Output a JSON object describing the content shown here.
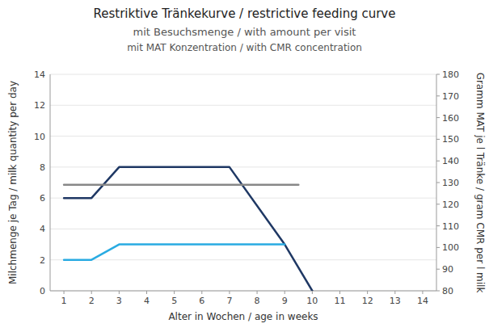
{
  "chart_data": {
    "type": "line",
    "title": "Restriktive Tränkekurve / restrictive feeding curve",
    "subtitle": [
      "mit Besuchsmenge / with amount per visit",
      "mit MAT Konzentration / with CMR concentration"
    ],
    "xlabel": "Alter in Wochen / age in weeks",
    "ylabel": "Milchmenge je Tag / milk quantity per day",
    "y2label": "Gramm MAT je l Tränke / gram CMR per l milk",
    "xlim": [
      0.5,
      14.5
    ],
    "xticks": [
      1,
      2,
      3,
      4,
      5,
      6,
      7,
      8,
      9,
      10,
      11,
      12,
      13,
      14
    ],
    "ylim": [
      0,
      14
    ],
    "yticks": [
      0,
      2,
      4,
      6,
      8,
      10,
      12,
      14
    ],
    "y2lim": [
      80,
      180
    ],
    "y2ticks": [
      80,
      90,
      100,
      110,
      120,
      130,
      140,
      150,
      160,
      170,
      180
    ],
    "grid": true,
    "series": [
      {
        "x": [
          1,
          2,
          3,
          6,
          7,
          9,
          10
        ],
        "values": [
          6,
          6,
          8,
          8,
          8,
          3,
          0
        ],
        "color": "#1F3864"
      },
      {
        "x": [
          1,
          2,
          3,
          8.5,
          9
        ],
        "values": [
          2,
          2,
          3,
          3,
          3
        ],
        "color": "#29ABE2"
      },
      {
        "x": [
          1,
          9.5
        ],
        "values": [
          6.85,
          6.85
        ],
        "color": "#888888"
      }
    ]
  }
}
